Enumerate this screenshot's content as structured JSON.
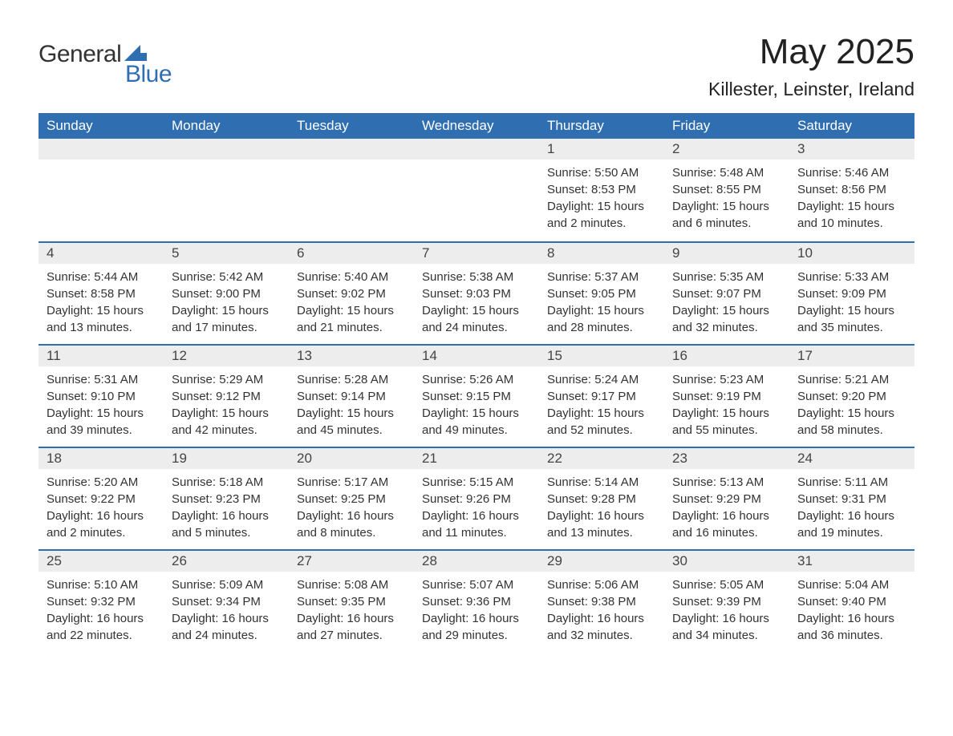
{
  "logo": {
    "general": "General",
    "blue": "Blue"
  },
  "title": {
    "month": "May 2025",
    "location": "Killester, Leinster, Ireland"
  },
  "style": {
    "header_bg": "#2f6eb0",
    "header_text": "#ffffff",
    "daynum_bg": "#ededed",
    "row_border": "#2f6eb0",
    "body_text": "#333333",
    "title_fontsize": 44,
    "location_fontsize": 23,
    "daynum_fontsize": 17,
    "body_fontsize": 15,
    "header_fontsize": 17
  },
  "columns": [
    "Sunday",
    "Monday",
    "Tuesday",
    "Wednesday",
    "Thursday",
    "Friday",
    "Saturday"
  ],
  "weeks": [
    [
      null,
      null,
      null,
      null,
      {
        "d": "1",
        "sr": "5:50 AM",
        "ss": "8:53 PM",
        "dl": "15 hours and 2 minutes."
      },
      {
        "d": "2",
        "sr": "5:48 AM",
        "ss": "8:55 PM",
        "dl": "15 hours and 6 minutes."
      },
      {
        "d": "3",
        "sr": "5:46 AM",
        "ss": "8:56 PM",
        "dl": "15 hours and 10 minutes."
      }
    ],
    [
      {
        "d": "4",
        "sr": "5:44 AM",
        "ss": "8:58 PM",
        "dl": "15 hours and 13 minutes."
      },
      {
        "d": "5",
        "sr": "5:42 AM",
        "ss": "9:00 PM",
        "dl": "15 hours and 17 minutes."
      },
      {
        "d": "6",
        "sr": "5:40 AM",
        "ss": "9:02 PM",
        "dl": "15 hours and 21 minutes."
      },
      {
        "d": "7",
        "sr": "5:38 AM",
        "ss": "9:03 PM",
        "dl": "15 hours and 24 minutes."
      },
      {
        "d": "8",
        "sr": "5:37 AM",
        "ss": "9:05 PM",
        "dl": "15 hours and 28 minutes."
      },
      {
        "d": "9",
        "sr": "5:35 AM",
        "ss": "9:07 PM",
        "dl": "15 hours and 32 minutes."
      },
      {
        "d": "10",
        "sr": "5:33 AM",
        "ss": "9:09 PM",
        "dl": "15 hours and 35 minutes."
      }
    ],
    [
      {
        "d": "11",
        "sr": "5:31 AM",
        "ss": "9:10 PM",
        "dl": "15 hours and 39 minutes."
      },
      {
        "d": "12",
        "sr": "5:29 AM",
        "ss": "9:12 PM",
        "dl": "15 hours and 42 minutes."
      },
      {
        "d": "13",
        "sr": "5:28 AM",
        "ss": "9:14 PM",
        "dl": "15 hours and 45 minutes."
      },
      {
        "d": "14",
        "sr": "5:26 AM",
        "ss": "9:15 PM",
        "dl": "15 hours and 49 minutes."
      },
      {
        "d": "15",
        "sr": "5:24 AM",
        "ss": "9:17 PM",
        "dl": "15 hours and 52 minutes."
      },
      {
        "d": "16",
        "sr": "5:23 AM",
        "ss": "9:19 PM",
        "dl": "15 hours and 55 minutes."
      },
      {
        "d": "17",
        "sr": "5:21 AM",
        "ss": "9:20 PM",
        "dl": "15 hours and 58 minutes."
      }
    ],
    [
      {
        "d": "18",
        "sr": "5:20 AM",
        "ss": "9:22 PM",
        "dl": "16 hours and 2 minutes."
      },
      {
        "d": "19",
        "sr": "5:18 AM",
        "ss": "9:23 PM",
        "dl": "16 hours and 5 minutes."
      },
      {
        "d": "20",
        "sr": "5:17 AM",
        "ss": "9:25 PM",
        "dl": "16 hours and 8 minutes."
      },
      {
        "d": "21",
        "sr": "5:15 AM",
        "ss": "9:26 PM",
        "dl": "16 hours and 11 minutes."
      },
      {
        "d": "22",
        "sr": "5:14 AM",
        "ss": "9:28 PM",
        "dl": "16 hours and 13 minutes."
      },
      {
        "d": "23",
        "sr": "5:13 AM",
        "ss": "9:29 PM",
        "dl": "16 hours and 16 minutes."
      },
      {
        "d": "24",
        "sr": "5:11 AM",
        "ss": "9:31 PM",
        "dl": "16 hours and 19 minutes."
      }
    ],
    [
      {
        "d": "25",
        "sr": "5:10 AM",
        "ss": "9:32 PM",
        "dl": "16 hours and 22 minutes."
      },
      {
        "d": "26",
        "sr": "5:09 AM",
        "ss": "9:34 PM",
        "dl": "16 hours and 24 minutes."
      },
      {
        "d": "27",
        "sr": "5:08 AM",
        "ss": "9:35 PM",
        "dl": "16 hours and 27 minutes."
      },
      {
        "d": "28",
        "sr": "5:07 AM",
        "ss": "9:36 PM",
        "dl": "16 hours and 29 minutes."
      },
      {
        "d": "29",
        "sr": "5:06 AM",
        "ss": "9:38 PM",
        "dl": "16 hours and 32 minutes."
      },
      {
        "d": "30",
        "sr": "5:05 AM",
        "ss": "9:39 PM",
        "dl": "16 hours and 34 minutes."
      },
      {
        "d": "31",
        "sr": "5:04 AM",
        "ss": "9:40 PM",
        "dl": "16 hours and 36 minutes."
      }
    ]
  ],
  "labels": {
    "sunrise": "Sunrise: ",
    "sunset": "Sunset: ",
    "daylight": "Daylight: "
  }
}
